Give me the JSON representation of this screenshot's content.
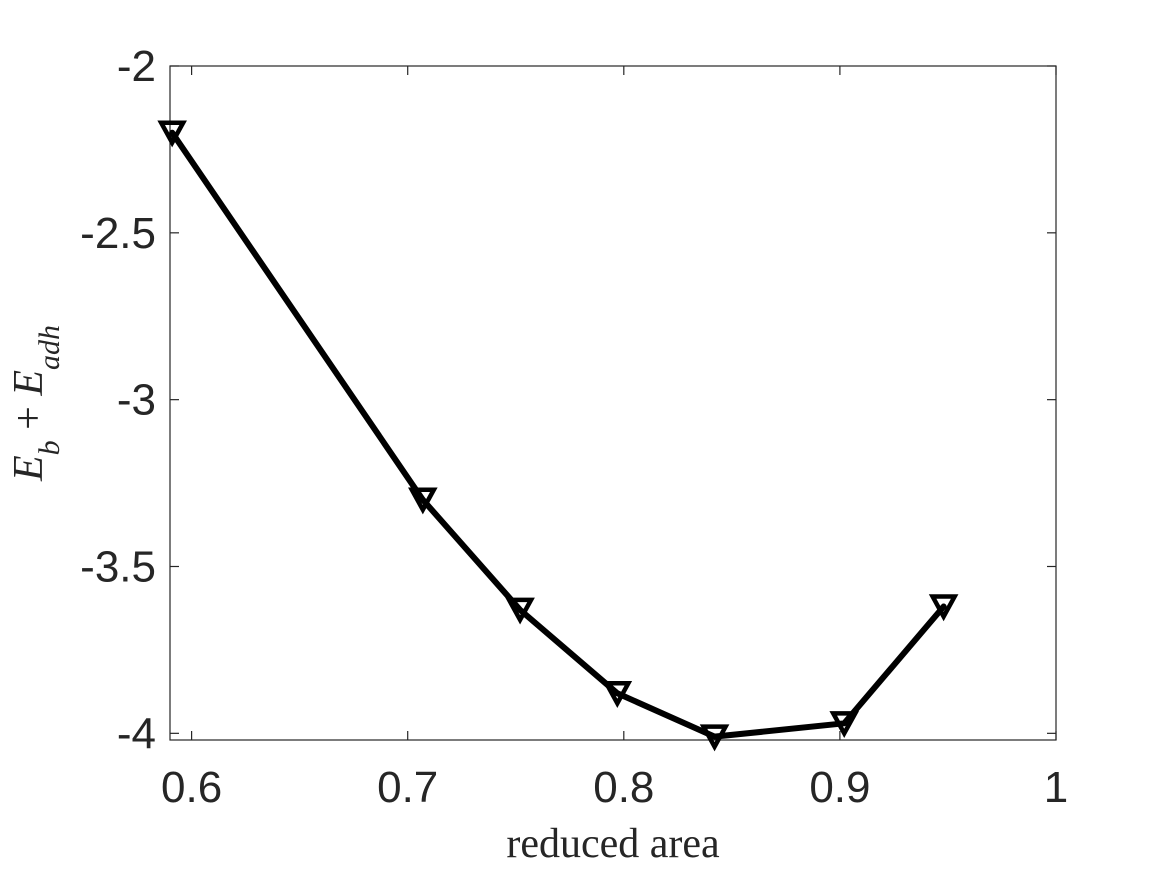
{
  "chart_data": {
    "type": "line",
    "title": "",
    "xlabel": "reduced area",
    "ylabel": {
      "parts": [
        {
          "text": "E",
          "italic": true
        },
        {
          "text": "b",
          "italic": true,
          "sub": true
        },
        {
          "text": " + ",
          "italic": false
        },
        {
          "text": "E",
          "italic": true
        },
        {
          "text": "adh",
          "italic": true,
          "sub": true
        }
      ]
    },
    "xlim": [
      0.59,
      1.0
    ],
    "ylim": [
      -4.02,
      -2.0
    ],
    "xticks": [
      0.6,
      0.7,
      0.8,
      0.9,
      1.0
    ],
    "xtick_labels": [
      "0.6",
      "0.7",
      "0.8",
      "0.9",
      "1"
    ],
    "yticks": [
      -4.0,
      -3.5,
      -3.0,
      -2.5,
      -2.0
    ],
    "ytick_labels": [
      "-4",
      "-3.5",
      "-3",
      "-2.5",
      "-2"
    ],
    "grid": false,
    "series": [
      {
        "marker": "triangle-down",
        "color": "#000000",
        "x": [
          0.591,
          0.707,
          0.752,
          0.797,
          0.842,
          0.902,
          0.948
        ],
        "y": [
          -2.2,
          -3.3,
          -3.63,
          -3.88,
          -4.01,
          -3.97,
          -3.62
        ]
      }
    ]
  }
}
